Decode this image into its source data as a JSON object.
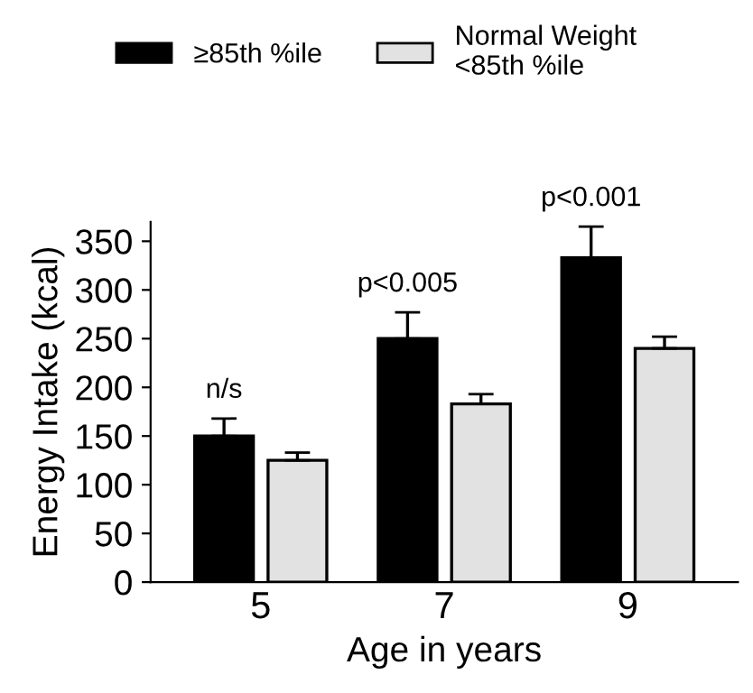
{
  "chart_data": {
    "type": "bar",
    "xlabel": "Age in years",
    "ylabel": "Energy Intake (kcal)",
    "categories": [
      "5",
      "7",
      "9"
    ],
    "series": [
      {
        "name": "≥85th %ile",
        "color": "#000000",
        "values": [
          150,
          250,
          333
        ],
        "errors": [
          [
            150,
            168
          ],
          [
            250,
            277
          ],
          [
            333,
            365
          ]
        ]
      },
      {
        "name": "Normal Weight\n<85th %ile",
        "color": "#e2e2e2",
        "values": [
          125,
          183,
          240
        ],
        "errors": [
          [
            125,
            133
          ],
          [
            183,
            193
          ],
          [
            240,
            252
          ]
        ]
      }
    ],
    "ylim": [
      0,
      370
    ],
    "yticks": [
      0,
      50,
      100,
      150,
      200,
      250,
      300,
      350
    ],
    "annotations": [
      "n/s",
      "p<0.005",
      "p<0.001"
    ],
    "grid": false,
    "legend": "top"
  }
}
